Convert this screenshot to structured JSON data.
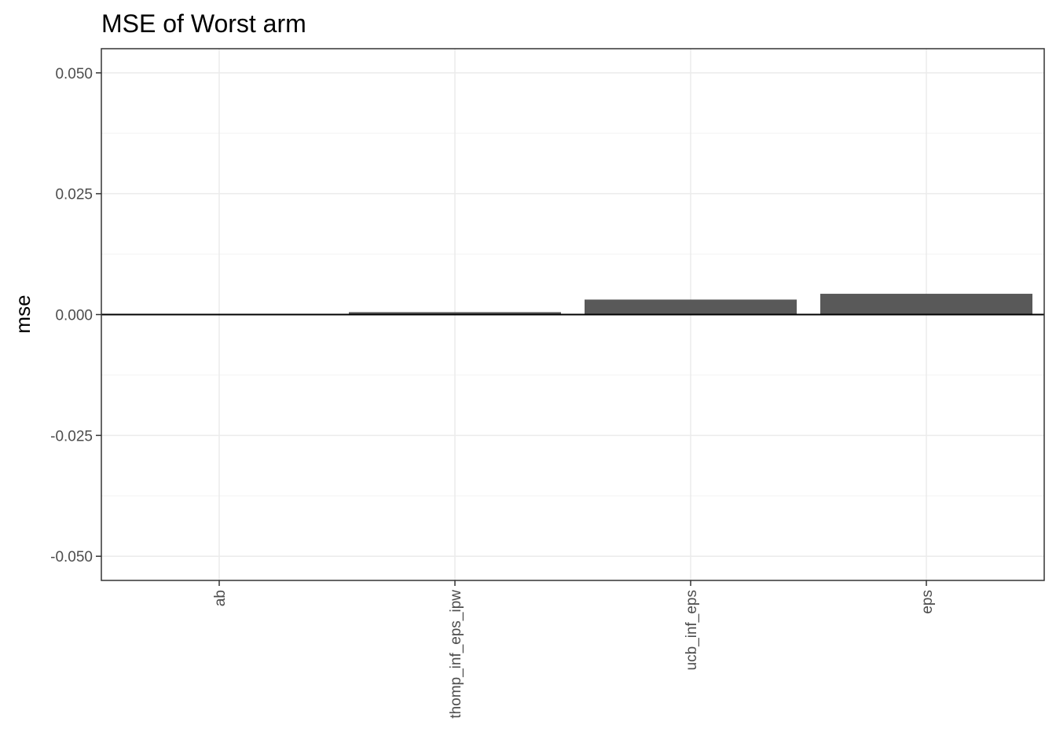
{
  "chart_data": {
    "type": "bar",
    "title": "MSE of Worst arm",
    "xlabel": "",
    "ylabel": "mse",
    "categories": [
      "ab",
      "thomp_inf_eps_ipw",
      "ucb_inf_eps",
      "eps"
    ],
    "values": [
      0.0,
      0.0005,
      0.0031,
      0.0043
    ],
    "ylim": [
      -0.055,
      0.055
    ],
    "yticks": [
      0.05,
      0.025,
      0.0,
      -0.025,
      -0.05
    ],
    "ytick_labels": [
      "0.050",
      "0.025",
      "0.000",
      "-0.025",
      "-0.050"
    ],
    "bar_color": "#595959",
    "grid": true,
    "zero_line": true,
    "legend": "none"
  }
}
